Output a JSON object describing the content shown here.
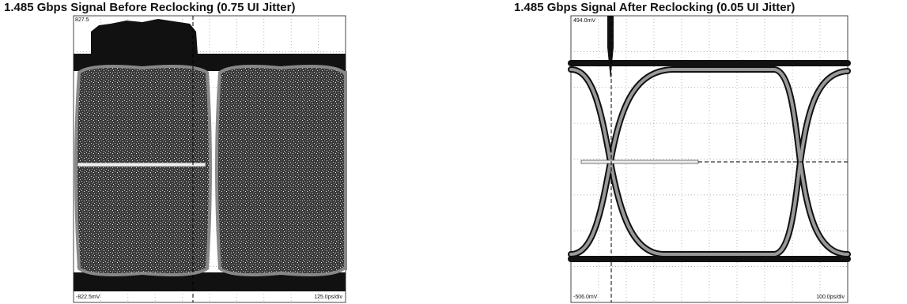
{
  "panels": [
    {
      "title": "1.485 Gbps Signal Before Reclocking (0.75 UI Jitter)",
      "top_label": "827.5",
      "bottom_left_label": "-822.5mV",
      "bottom_right_label": "125.0ps/div"
    },
    {
      "title": "1.485 Gbps Signal After Reclocking (0.05 UI Jitter)",
      "top_label": "494.0mV",
      "bottom_left_label": "-506.0mV",
      "bottom_right_label": "100.0ps/div"
    }
  ]
}
